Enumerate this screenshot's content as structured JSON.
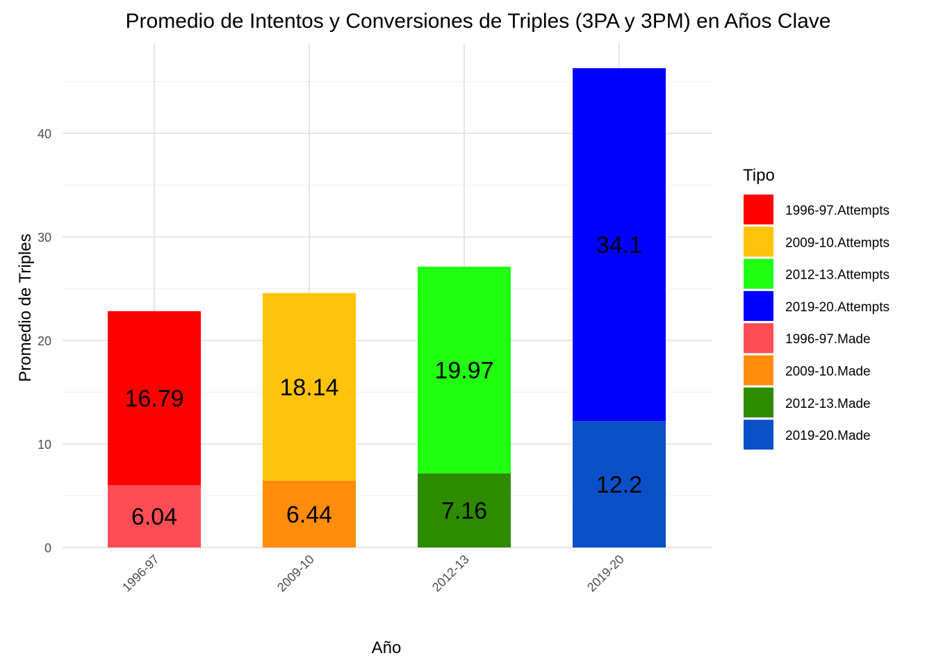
{
  "chart_data": {
    "type": "bar",
    "stacked": true,
    "title": "Promedio de Intentos y Conversiones de Triples (3PA y 3PM) en Años Clave",
    "xlabel": "Año",
    "ylabel": "Promedio de Triples",
    "categories": [
      "1996-97",
      "2009-10",
      "2012-13",
      "2019-20"
    ],
    "ylim": [
      0,
      47
    ],
    "yticks": [
      0,
      10,
      20,
      30,
      40
    ],
    "grid": true,
    "legend": {
      "title": "Tipo",
      "position": "right",
      "entries": [
        {
          "label": "1996-97.Attempts",
          "color": "#ff0000"
        },
        {
          "label": "2009-10.Attempts",
          "color": "#ffc30b"
        },
        {
          "label": "2012-13.Attempts",
          "color": "#1fff0f"
        },
        {
          "label": "2019-20.Attempts",
          "color": "#0000ff"
        },
        {
          "label": "1996-97.Made",
          "color": "#ff4d55"
        },
        {
          "label": "2009-10.Made",
          "color": "#ff8c0b"
        },
        {
          "label": "2012-13.Made",
          "color": "#2e8b00"
        },
        {
          "label": "2019-20.Made",
          "color": "#0a50c8"
        }
      ]
    },
    "series": [
      {
        "type": "Made",
        "values": [
          6.04,
          6.44,
          7.16,
          12.2
        ],
        "labels": [
          "6.04",
          "6.44",
          "7.16",
          "12.2"
        ],
        "colors": [
          "#ff4d55",
          "#ff8c0b",
          "#2e8b00",
          "#0a50c8"
        ]
      },
      {
        "type": "Attempts",
        "values": [
          16.79,
          18.14,
          19.97,
          34.1
        ],
        "labels": [
          "16.79",
          "18.14",
          "19.97",
          "34.1"
        ],
        "colors": [
          "#ff0000",
          "#ffc30b",
          "#1fff0f",
          "#0000ff"
        ]
      }
    ]
  }
}
